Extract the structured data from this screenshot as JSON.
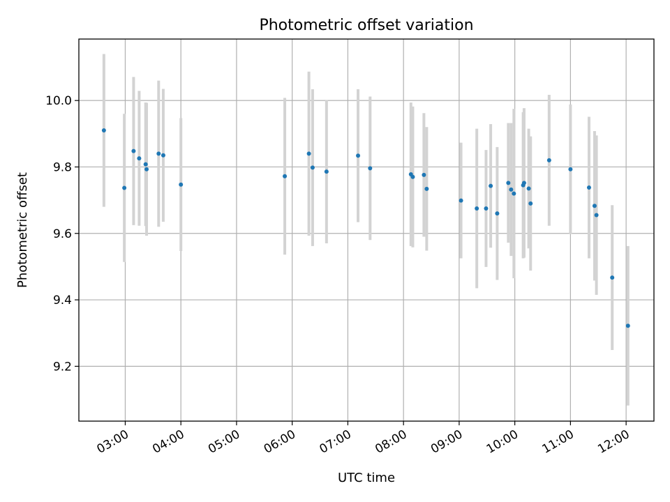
{
  "chart_data": {
    "type": "scatter",
    "title": "Photometric offset variation",
    "xlabel": "UTC time",
    "ylabel": "Photometric offset",
    "x_tick_labels": [
      "03:00",
      "04:00",
      "05:00",
      "06:00",
      "07:00",
      "08:00",
      "09:00",
      "10:00",
      "11:00",
      "12:00"
    ],
    "y_ticks": [
      9.2,
      9.4,
      9.6,
      9.8,
      10.0
    ],
    "y_tick_labels": [
      "9.2",
      "9.4",
      "9.6",
      "9.8",
      "10.0"
    ],
    "xlim": [
      "02:10",
      "12:30"
    ],
    "ylim": [
      9.035,
      10.185
    ],
    "grid": true,
    "point_color": "#1f77b4",
    "errorbar_color": "#d3d3d3",
    "points": [
      {
        "x": "02:37",
        "y": 9.91,
        "err": 0.23
      },
      {
        "x": "02:59",
        "y": 9.737,
        "err": 0.223
      },
      {
        "x": "03:09",
        "y": 9.848,
        "err": 0.223
      },
      {
        "x": "03:15",
        "y": 9.826,
        "err": 0.203
      },
      {
        "x": "03:22",
        "y": 9.808,
        "err": 0.186
      },
      {
        "x": "03:23",
        "y": 9.793,
        "err": 0.2
      },
      {
        "x": "03:36",
        "y": 9.84,
        "err": 0.22
      },
      {
        "x": "03:41",
        "y": 9.835,
        "err": 0.2
      },
      {
        "x": "04:00",
        "y": 9.747,
        "err": 0.2
      },
      {
        "x": "05:52",
        "y": 9.772,
        "err": 0.236
      },
      {
        "x": "06:18",
        "y": 9.84,
        "err": 0.247
      },
      {
        "x": "06:22",
        "y": 9.798,
        "err": 0.236
      },
      {
        "x": "06:37",
        "y": 9.786,
        "err": 0.216
      },
      {
        "x": "07:11",
        "y": 9.834,
        "err": 0.2
      },
      {
        "x": "07:24",
        "y": 9.796,
        "err": 0.216
      },
      {
        "x": "08:08",
        "y": 9.778,
        "err": 0.216
      },
      {
        "x": "08:10",
        "y": 9.77,
        "err": 0.212
      },
      {
        "x": "08:22",
        "y": 9.776,
        "err": 0.186
      },
      {
        "x": "08:25",
        "y": 9.734,
        "err": 0.186
      },
      {
        "x": "09:02",
        "y": 9.699,
        "err": 0.174
      },
      {
        "x": "09:19",
        "y": 9.675,
        "err": 0.24
      },
      {
        "x": "09:29",
        "y": 9.675,
        "err": 0.176
      },
      {
        "x": "09:34",
        "y": 9.743,
        "err": 0.186
      },
      {
        "x": "09:41",
        "y": 9.66,
        "err": 0.2
      },
      {
        "x": "09:53",
        "y": 9.752,
        "err": 0.18
      },
      {
        "x": "09:56",
        "y": 9.732,
        "err": 0.2
      },
      {
        "x": "09:59",
        "y": 9.72,
        "err": 0.255
      },
      {
        "x": "10:09",
        "y": 9.745,
        "err": 0.22
      },
      {
        "x": "10:10",
        "y": 9.752,
        "err": 0.225
      },
      {
        "x": "10:15",
        "y": 9.735,
        "err": 0.18
      },
      {
        "x": "10:17",
        "y": 9.69,
        "err": 0.202
      },
      {
        "x": "10:37",
        "y": 9.82,
        "err": 0.197
      },
      {
        "x": "11:00",
        "y": 9.793,
        "err": 0.195
      },
      {
        "x": "11:20",
        "y": 9.738,
        "err": 0.213
      },
      {
        "x": "11:26",
        "y": 9.683,
        "err": 0.225
      },
      {
        "x": "11:28",
        "y": 9.655,
        "err": 0.24
      },
      {
        "x": "11:45",
        "y": 9.467,
        "err": 0.218
      },
      {
        "x": "12:02",
        "y": 9.322,
        "err": 0.24
      }
    ]
  }
}
